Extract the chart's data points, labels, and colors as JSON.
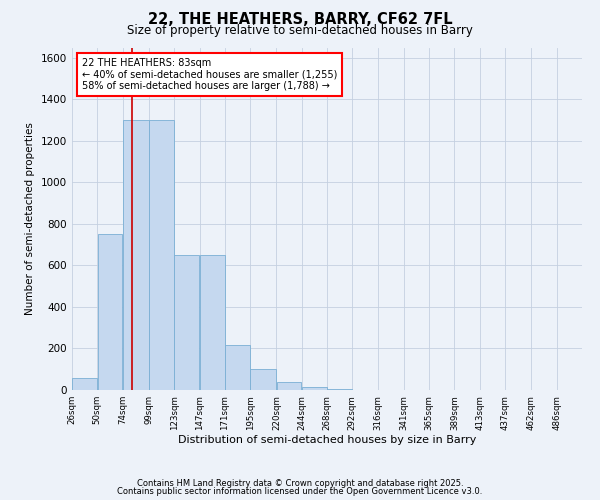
{
  "title": "22, THE HEATHERS, BARRY, CF62 7FL",
  "subtitle": "Size of property relative to semi-detached houses in Barry",
  "xlabel": "Distribution of semi-detached houses by size in Barry",
  "ylabel": "Number of semi-detached properties",
  "footnote1": "Contains HM Land Registry data © Crown copyright and database right 2025.",
  "footnote2": "Contains public sector information licensed under the Open Government Licence v3.0.",
  "annotation_title": "22 THE HEATHERS: 83sqm",
  "annotation_line1": "← 40% of semi-detached houses are smaller (1,255)",
  "annotation_line2": "58% of semi-detached houses are larger (1,788) →",
  "property_size": 83,
  "bar_edges": [
    26,
    50,
    74,
    99,
    123,
    147,
    171,
    195,
    220,
    244,
    268,
    292,
    316,
    341,
    365,
    389,
    413,
    437,
    462,
    486,
    510
  ],
  "bar_heights": [
    60,
    750,
    1300,
    1300,
    650,
    650,
    215,
    100,
    40,
    15,
    5,
    2,
    1,
    0,
    0,
    0,
    0,
    0,
    0,
    0
  ],
  "bar_color": "#c5d8ef",
  "bar_edge_color": "#7aafd4",
  "red_line_color": "#cc0000",
  "background_color": "#edf2f9",
  "grid_color": "#c5d0e0",
  "ylim": [
    0,
    1650
  ],
  "yticks": [
    0,
    200,
    400,
    600,
    800,
    1000,
    1200,
    1400,
    1600
  ]
}
